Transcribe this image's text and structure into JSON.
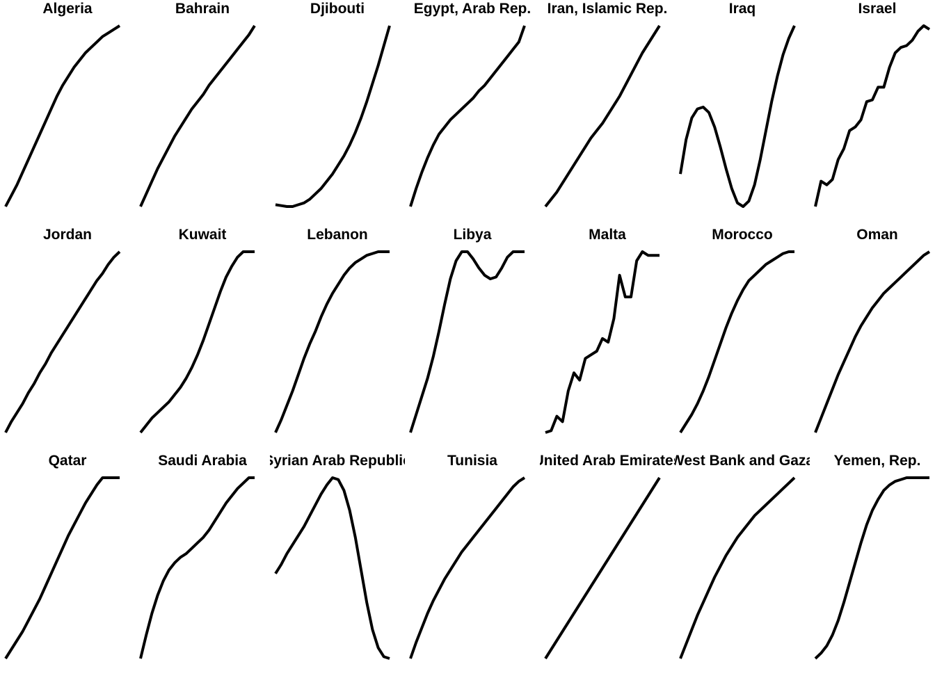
{
  "line_color": "#000000",
  "chart_data": [
    {
      "type": "line",
      "title": "Algeria",
      "x": [
        0,
        1,
        2,
        3,
        4,
        5,
        6,
        7,
        8,
        9,
        10,
        11,
        12,
        13,
        14,
        15,
        16,
        17,
        18,
        19,
        20
      ],
      "values": [
        0.0,
        0.06,
        0.12,
        0.19,
        0.26,
        0.33,
        0.4,
        0.47,
        0.54,
        0.61,
        0.67,
        0.72,
        0.77,
        0.81,
        0.85,
        0.88,
        0.91,
        0.94,
        0.96,
        0.98,
        1.0
      ]
    },
    {
      "type": "line",
      "title": "Bahrain",
      "x": [
        0,
        1,
        2,
        3,
        4,
        5,
        6,
        7,
        8,
        9,
        10,
        11,
        12,
        13,
        14,
        15,
        16,
        17,
        18,
        19,
        20
      ],
      "values": [
        0.0,
        0.07,
        0.14,
        0.21,
        0.27,
        0.33,
        0.39,
        0.44,
        0.49,
        0.54,
        0.58,
        0.62,
        0.67,
        0.71,
        0.75,
        0.79,
        0.83,
        0.87,
        0.91,
        0.95,
        1.0
      ]
    },
    {
      "type": "line",
      "title": "Djibouti",
      "x": [
        0,
        1,
        2,
        3,
        4,
        5,
        6,
        7,
        8,
        9,
        10,
        11,
        12,
        13,
        14,
        15,
        16,
        17,
        18,
        19,
        20
      ],
      "values": [
        0.01,
        0.005,
        0.0,
        0.0,
        0.01,
        0.02,
        0.04,
        0.07,
        0.1,
        0.14,
        0.18,
        0.23,
        0.28,
        0.34,
        0.41,
        0.49,
        0.58,
        0.68,
        0.78,
        0.89,
        1.0
      ]
    },
    {
      "type": "line",
      "title": "Egypt, Arab Rep.",
      "x": [
        0,
        1,
        2,
        3,
        4,
        5,
        6,
        7,
        8,
        9,
        10,
        11,
        12,
        13,
        14,
        15,
        16,
        17,
        18,
        19,
        20
      ],
      "values": [
        0.0,
        0.1,
        0.19,
        0.27,
        0.34,
        0.4,
        0.44,
        0.48,
        0.51,
        0.54,
        0.57,
        0.6,
        0.64,
        0.67,
        0.71,
        0.75,
        0.79,
        0.83,
        0.87,
        0.91,
        1.0
      ]
    },
    {
      "type": "line",
      "title": "Iran, Islamic Rep.",
      "x": [
        0,
        1,
        2,
        3,
        4,
        5,
        6,
        7,
        8,
        9,
        10,
        11,
        12,
        13,
        14,
        15,
        16,
        17,
        18,
        19,
        20
      ],
      "values": [
        0.0,
        0.04,
        0.08,
        0.13,
        0.18,
        0.23,
        0.28,
        0.33,
        0.38,
        0.42,
        0.46,
        0.51,
        0.56,
        0.61,
        0.67,
        0.73,
        0.79,
        0.85,
        0.9,
        0.95,
        1.0
      ]
    },
    {
      "type": "line",
      "title": "Iraq",
      "x": [
        0,
        1,
        2,
        3,
        4,
        5,
        6,
        7,
        8,
        9,
        10,
        11,
        12,
        13,
        14,
        15,
        16,
        17,
        18,
        19,
        20
      ],
      "values": [
        0.18,
        0.37,
        0.49,
        0.54,
        0.55,
        0.52,
        0.44,
        0.33,
        0.21,
        0.1,
        0.02,
        0.0,
        0.03,
        0.12,
        0.26,
        0.42,
        0.58,
        0.72,
        0.84,
        0.93,
        1.0
      ]
    },
    {
      "type": "line",
      "title": "Israel",
      "x": [
        0,
        1,
        2,
        3,
        4,
        5,
        6,
        7,
        8,
        9,
        10,
        11,
        12,
        13,
        14,
        15,
        16,
        17,
        18,
        19,
        20
      ],
      "values": [
        0.0,
        0.14,
        0.12,
        0.15,
        0.26,
        0.32,
        0.42,
        0.44,
        0.48,
        0.58,
        0.59,
        0.66,
        0.66,
        0.77,
        0.85,
        0.88,
        0.89,
        0.92,
        0.97,
        1.0,
        0.98
      ]
    },
    {
      "type": "line",
      "title": "Jordan",
      "x": [
        0,
        1,
        2,
        3,
        4,
        5,
        6,
        7,
        8,
        9,
        10,
        11,
        12,
        13,
        14,
        15,
        16,
        17,
        18,
        19,
        20
      ],
      "values": [
        0.0,
        0.06,
        0.11,
        0.16,
        0.22,
        0.27,
        0.33,
        0.38,
        0.44,
        0.49,
        0.54,
        0.59,
        0.64,
        0.69,
        0.74,
        0.79,
        0.84,
        0.88,
        0.93,
        0.97,
        1.0
      ]
    },
    {
      "type": "line",
      "title": "Kuwait",
      "x": [
        0,
        1,
        2,
        3,
        4,
        5,
        6,
        7,
        8,
        9,
        10,
        11,
        12,
        13,
        14,
        15,
        16,
        17,
        18,
        19,
        20
      ],
      "values": [
        0.0,
        0.04,
        0.08,
        0.11,
        0.14,
        0.17,
        0.21,
        0.25,
        0.3,
        0.36,
        0.43,
        0.51,
        0.6,
        0.69,
        0.78,
        0.86,
        0.92,
        0.97,
        1.0,
        1.0,
        1.0
      ]
    },
    {
      "type": "line",
      "title": "Lebanon",
      "x": [
        0,
        1,
        2,
        3,
        4,
        5,
        6,
        7,
        8,
        9,
        10,
        11,
        12,
        13,
        14,
        15,
        16,
        17,
        18,
        19,
        20
      ],
      "values": [
        0.0,
        0.07,
        0.15,
        0.23,
        0.32,
        0.41,
        0.49,
        0.56,
        0.64,
        0.71,
        0.77,
        0.82,
        0.87,
        0.91,
        0.94,
        0.96,
        0.98,
        0.99,
        1.0,
        1.0,
        1.0
      ]
    },
    {
      "type": "line",
      "title": "Libya",
      "x": [
        0,
        1,
        2,
        3,
        4,
        5,
        6,
        7,
        8,
        9,
        10,
        11,
        12,
        13,
        14,
        15,
        16,
        17,
        18,
        19,
        20
      ],
      "values": [
        0.0,
        0.1,
        0.2,
        0.3,
        0.42,
        0.56,
        0.71,
        0.85,
        0.95,
        1.0,
        1.0,
        0.96,
        0.91,
        0.87,
        0.85,
        0.86,
        0.91,
        0.97,
        1.0,
        1.0,
        1.0
      ]
    },
    {
      "type": "line",
      "title": "Malta",
      "x": [
        0,
        1,
        2,
        3,
        4,
        5,
        6,
        7,
        8,
        9,
        10,
        11,
        12,
        13,
        14,
        15,
        16,
        17,
        18,
        19,
        20
      ],
      "values": [
        0.0,
        0.01,
        0.09,
        0.06,
        0.23,
        0.33,
        0.29,
        0.41,
        0.43,
        0.45,
        0.52,
        0.5,
        0.63,
        0.87,
        0.75,
        0.75,
        0.95,
        1.0,
        0.98,
        0.98,
        0.98
      ]
    },
    {
      "type": "line",
      "title": "Morocco",
      "x": [
        0,
        1,
        2,
        3,
        4,
        5,
        6,
        7,
        8,
        9,
        10,
        11,
        12,
        13,
        14,
        15,
        16,
        17,
        18,
        19,
        20
      ],
      "values": [
        0.0,
        0.05,
        0.1,
        0.16,
        0.23,
        0.31,
        0.4,
        0.49,
        0.58,
        0.66,
        0.73,
        0.79,
        0.84,
        0.87,
        0.9,
        0.93,
        0.95,
        0.97,
        0.99,
        1.0,
        1.0
      ]
    },
    {
      "type": "line",
      "title": "Oman",
      "x": [
        0,
        1,
        2,
        3,
        4,
        5,
        6,
        7,
        8,
        9,
        10,
        11,
        12,
        13,
        14,
        15,
        16,
        17,
        18,
        19,
        20
      ],
      "values": [
        0.0,
        0.08,
        0.16,
        0.24,
        0.32,
        0.39,
        0.46,
        0.53,
        0.59,
        0.64,
        0.69,
        0.73,
        0.77,
        0.8,
        0.83,
        0.86,
        0.89,
        0.92,
        0.95,
        0.98,
        1.0
      ]
    },
    {
      "type": "line",
      "title": "Qatar",
      "x": [
        0,
        1,
        2,
        3,
        4,
        5,
        6,
        7,
        8,
        9,
        10,
        11,
        12,
        13,
        14,
        15,
        16,
        17,
        18,
        19,
        20
      ],
      "values": [
        0.0,
        0.05,
        0.1,
        0.15,
        0.21,
        0.27,
        0.33,
        0.4,
        0.47,
        0.54,
        0.61,
        0.68,
        0.74,
        0.8,
        0.86,
        0.91,
        0.96,
        1.0,
        1.0,
        1.0,
        1.0
      ]
    },
    {
      "type": "line",
      "title": "Saudi Arabia",
      "x": [
        0,
        1,
        2,
        3,
        4,
        5,
        6,
        7,
        8,
        9,
        10,
        11,
        12,
        13,
        14,
        15,
        16,
        17,
        18,
        19,
        20
      ],
      "values": [
        0.0,
        0.13,
        0.25,
        0.35,
        0.43,
        0.49,
        0.53,
        0.56,
        0.58,
        0.61,
        0.64,
        0.67,
        0.71,
        0.76,
        0.81,
        0.86,
        0.9,
        0.94,
        0.97,
        1.0,
        1.0
      ]
    },
    {
      "type": "line",
      "title": "Syrian Arab Republic",
      "x": [
        0,
        1,
        2,
        3,
        4,
        5,
        6,
        7,
        8,
        9,
        10,
        11,
        12,
        13,
        14,
        15,
        16,
        17,
        18,
        19,
        20
      ],
      "values": [
        0.47,
        0.52,
        0.58,
        0.63,
        0.68,
        0.73,
        0.79,
        0.85,
        0.91,
        0.96,
        1.0,
        0.99,
        0.93,
        0.82,
        0.67,
        0.49,
        0.31,
        0.16,
        0.06,
        0.01,
        0.0
      ]
    },
    {
      "type": "line",
      "title": "Tunisia",
      "x": [
        0,
        1,
        2,
        3,
        4,
        5,
        6,
        7,
        8,
        9,
        10,
        11,
        12,
        13,
        14,
        15,
        16,
        17,
        18,
        19,
        20
      ],
      "values": [
        0.0,
        0.09,
        0.17,
        0.25,
        0.32,
        0.38,
        0.44,
        0.49,
        0.54,
        0.59,
        0.63,
        0.67,
        0.71,
        0.75,
        0.79,
        0.83,
        0.87,
        0.91,
        0.95,
        0.98,
        1.0
      ]
    },
    {
      "type": "line",
      "title": "United Arab Emirates",
      "x": [
        0,
        1,
        2,
        3,
        4,
        5,
        6,
        7,
        8,
        9,
        10,
        11,
        12,
        13,
        14,
        15,
        16,
        17,
        18,
        19,
        20
      ],
      "values": [
        0.0,
        0.05,
        0.1,
        0.15,
        0.2,
        0.25,
        0.3,
        0.35,
        0.4,
        0.45,
        0.5,
        0.55,
        0.6,
        0.65,
        0.7,
        0.75,
        0.8,
        0.85,
        0.9,
        0.95,
        1.0
      ]
    },
    {
      "type": "line",
      "title": "West Bank and Gaza",
      "x": [
        0,
        1,
        2,
        3,
        4,
        5,
        6,
        7,
        8,
        9,
        10,
        11,
        12,
        13,
        14,
        15,
        16,
        17,
        18,
        19,
        20
      ],
      "values": [
        0.0,
        0.08,
        0.16,
        0.24,
        0.31,
        0.38,
        0.45,
        0.51,
        0.57,
        0.62,
        0.67,
        0.71,
        0.75,
        0.79,
        0.82,
        0.85,
        0.88,
        0.91,
        0.94,
        0.97,
        1.0
      ]
    },
    {
      "type": "line",
      "title": "Yemen, Rep.",
      "x": [
        0,
        1,
        2,
        3,
        4,
        5,
        6,
        7,
        8,
        9,
        10,
        11,
        12,
        13,
        14,
        15,
        16,
        17,
        18,
        19,
        20
      ],
      "values": [
        0.0,
        0.03,
        0.07,
        0.13,
        0.21,
        0.31,
        0.42,
        0.53,
        0.64,
        0.74,
        0.82,
        0.88,
        0.93,
        0.96,
        0.98,
        0.99,
        1.0,
        1.0,
        1.0,
        1.0,
        1.0
      ]
    }
  ]
}
